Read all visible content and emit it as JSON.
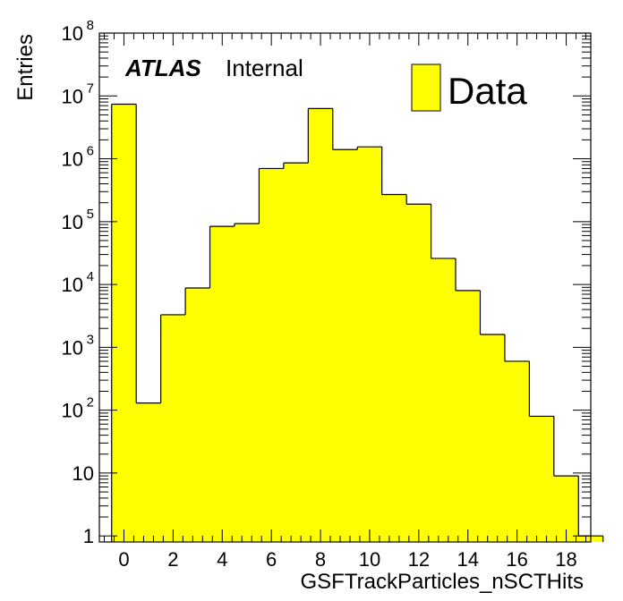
{
  "chart_data": {
    "type": "bar",
    "xlabel": "GSFTrackParticles_nSCTHits",
    "ylabel": "Entries",
    "xlim": [
      -1,
      19
    ],
    "ylim": [
      0.8,
      100000000
    ],
    "yscale": "log",
    "bin_edges": [
      -0.5,
      0.5,
      1.5,
      2.5,
      3.5,
      4.5,
      5.5,
      6.5,
      7.5,
      8.5,
      9.5,
      10.5,
      11.5,
      12.5,
      13.5,
      14.5,
      15.5,
      16.5,
      17.5,
      18.5,
      19.5
    ],
    "values": [
      7400000,
      130,
      3300,
      8800,
      84000,
      93000,
      700000,
      860000,
      6300000,
      1400000,
      1550000,
      270000,
      190000,
      26000,
      8000,
      1600,
      600,
      80,
      9,
      1
    ],
    "series": [
      {
        "name": "Data",
        "color": "#ffff00"
      }
    ],
    "x_ticks": [
      "0",
      "2",
      "4",
      "6",
      "8",
      "10",
      "12",
      "14",
      "16",
      "18"
    ],
    "y_ticks": [
      {
        "base": "1",
        "exp": ""
      },
      {
        "base": "10",
        "exp": ""
      },
      {
        "base": "10",
        "exp": "2"
      },
      {
        "base": "10",
        "exp": "3"
      },
      {
        "base": "10",
        "exp": "4"
      },
      {
        "base": "10",
        "exp": "5"
      },
      {
        "base": "10",
        "exp": "6"
      },
      {
        "base": "10",
        "exp": "7"
      },
      {
        "base": "10",
        "exp": "8"
      }
    ],
    "annotations": {
      "experiment": "ATLAS",
      "status": "Internal"
    },
    "legend": {
      "label": "Data",
      "position": "top-right"
    },
    "grid": false
  }
}
